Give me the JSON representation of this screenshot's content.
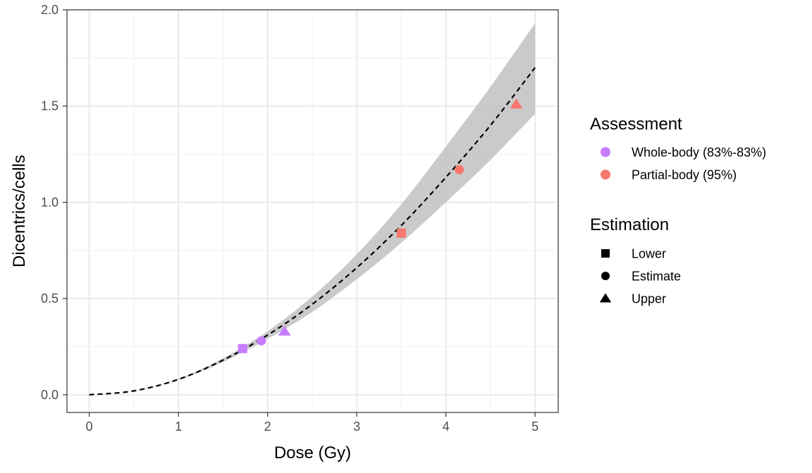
{
  "chart_data": {
    "type": "scatter",
    "xlabel": "Dose (Gy)",
    "ylabel": "Dicentrics/cells",
    "xlim": [
      -0.25,
      5.26
    ],
    "ylim": [
      -0.092,
      2.0
    ],
    "xticks": [
      0,
      1,
      2,
      3,
      4,
      5
    ],
    "yticks": [
      0.0,
      0.5,
      1.0,
      1.5,
      2.0
    ],
    "xtick_labels": [
      "0",
      "1",
      "2",
      "3",
      "4",
      "5"
    ],
    "ytick_labels": [
      "0.0",
      "0.5",
      "1.0",
      "1.5",
      "2.0"
    ],
    "grid": true,
    "legend_position": "right",
    "curve": {
      "style": "dashed",
      "color": "#000000",
      "points": [
        [
          0,
          0.0
        ],
        [
          0.5,
          0.02
        ],
        [
          1,
          0.08
        ],
        [
          1.5,
          0.18
        ],
        [
          2,
          0.31
        ],
        [
          2.5,
          0.47
        ],
        [
          3,
          0.66
        ],
        [
          3.5,
          0.88
        ],
        [
          4,
          1.13
        ],
        [
          4.5,
          1.4
        ],
        [
          5,
          1.7
        ]
      ]
    },
    "confidence_band": {
      "color": "#bdbdbd",
      "upper": [
        [
          0,
          0.0
        ],
        [
          0.5,
          0.021
        ],
        [
          1,
          0.083
        ],
        [
          1.5,
          0.19
        ],
        [
          2,
          0.33
        ],
        [
          2.5,
          0.51
        ],
        [
          3,
          0.73
        ],
        [
          3.5,
          0.99
        ],
        [
          4,
          1.29
        ],
        [
          4.5,
          1.6
        ],
        [
          5,
          1.93
        ]
      ],
      "lower": [
        [
          0,
          0.0
        ],
        [
          0.5,
          0.019
        ],
        [
          1,
          0.077
        ],
        [
          1.5,
          0.17
        ],
        [
          2,
          0.29
        ],
        [
          2.5,
          0.43
        ],
        [
          3,
          0.6
        ],
        [
          3.5,
          0.79
        ],
        [
          4,
          1.0
        ],
        [
          4.5,
          1.22
        ],
        [
          5,
          1.46
        ]
      ]
    },
    "points": [
      {
        "assessment": "Whole-body (83%-83%)",
        "estimation": "Lower",
        "x": 1.72,
        "y": 0.24
      },
      {
        "assessment": "Whole-body (83%-83%)",
        "estimation": "Estimate",
        "x": 1.93,
        "y": 0.28
      },
      {
        "assessment": "Whole-body (83%-83%)",
        "estimation": "Upper",
        "x": 2.19,
        "y": 0.33
      },
      {
        "assessment": "Partial-body (95%)",
        "estimation": "Lower",
        "x": 3.5,
        "y": 0.84
      },
      {
        "assessment": "Partial-body (95%)",
        "estimation": "Estimate",
        "x": 4.15,
        "y": 1.17
      },
      {
        "assessment": "Partial-body (95%)",
        "estimation": "Upper",
        "x": 4.79,
        "y": 1.51
      }
    ],
    "legends": [
      {
        "title": "Assessment",
        "kind": "color",
        "entries": [
          {
            "label": "Whole-body (83%-83%)",
            "color": "#c77cff"
          },
          {
            "label": "Partial-body (95%)",
            "color": "#f8766d"
          }
        ]
      },
      {
        "title": "Estimation",
        "kind": "shape",
        "entries": [
          {
            "label": "Lower",
            "shape": "square"
          },
          {
            "label": "Estimate",
            "shape": "circle"
          },
          {
            "label": "Upper",
            "shape": "triangle"
          }
        ]
      }
    ]
  }
}
